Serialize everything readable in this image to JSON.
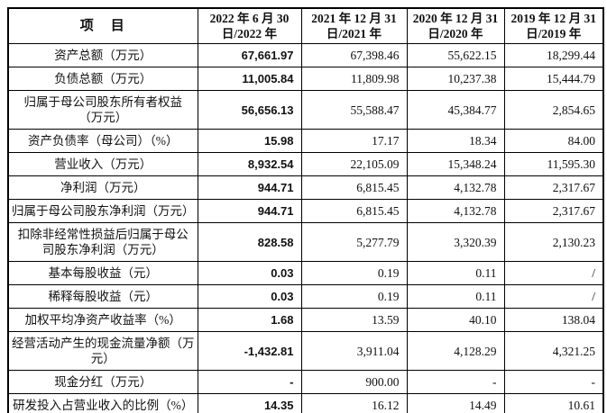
{
  "table": {
    "item_header": "项　目",
    "columns": [
      "2022 年 6 月 30\n日/2022 年",
      "2021 年 12 月 31\n日/2021 年",
      "2020 年 12 月 31\n日/2020 年",
      "2019 年 12 月 31\n日/2019 年"
    ],
    "rows": [
      {
        "label": "资产总额（万元）",
        "values": [
          "67,661.97",
          "67,398.46",
          "55,622.15",
          "18,299.44"
        ]
      },
      {
        "label": "负债总额（万元）",
        "values": [
          "11,005.84",
          "11,809.98",
          "10,237.38",
          "15,444.79"
        ]
      },
      {
        "label": "归属于母公司股东所有者权益\n（万元）",
        "values": [
          "56,656.13",
          "55,588.47",
          "45,384.77",
          "2,854.65"
        ]
      },
      {
        "label": "资产负债率（母公司）（%）",
        "values": [
          "15.98",
          "17.17",
          "18.34",
          "84.00"
        ]
      },
      {
        "label": "营业收入（万元）",
        "values": [
          "8,932.54",
          "22,105.09",
          "15,348.24",
          "11,595.30"
        ]
      },
      {
        "label": "净利润（万元）",
        "values": [
          "944.71",
          "6,815.45",
          "4,132.78",
          "2,317.67"
        ]
      },
      {
        "label": "归属于母公司股东净利润（万元）",
        "values": [
          "944.71",
          "6,815.45",
          "4,132.78",
          "2,317.67"
        ]
      },
      {
        "label": "扣除非经常性损益后归属于母公\n司股东净利润（万元）",
        "values": [
          "828.58",
          "5,277.79",
          "3,320.39",
          "2,130.23"
        ]
      },
      {
        "label": "基本每股收益（元）",
        "values": [
          "0.03",
          "0.19",
          "0.11",
          "/"
        ]
      },
      {
        "label": "稀释每股收益（元）",
        "values": [
          "0.03",
          "0.19",
          "0.11",
          "/"
        ]
      },
      {
        "label": "加权平均净资产收益率（%）",
        "values": [
          "1.68",
          "13.59",
          "40.10",
          "138.04"
        ]
      },
      {
        "label": "经营活动产生的现金流量净额（万\n元）",
        "values": [
          "-1,432.81",
          "3,911.04",
          "4,128.29",
          "4,321.25"
        ]
      },
      {
        "label": "现金分红（万元）",
        "values": [
          "-",
          "900.00",
          "-",
          "-"
        ]
      },
      {
        "label": "研发投入占营业收入的比例（%）",
        "values": [
          "14.35",
          "16.12",
          "14.49",
          "10.61"
        ]
      }
    ]
  },
  "colors": {
    "border": "#000000",
    "text": "#111111",
    "background": "#ffffff"
  }
}
